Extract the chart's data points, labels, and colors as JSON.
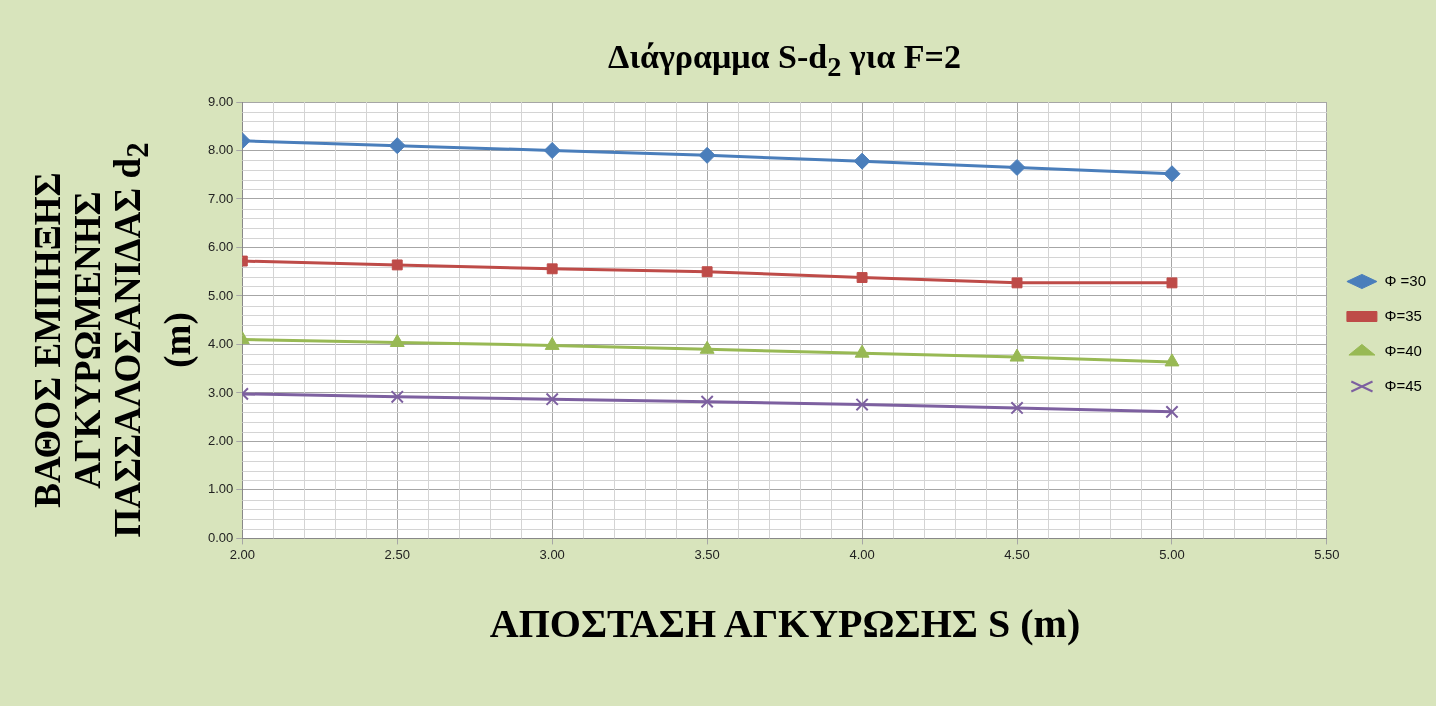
{
  "chart_data": {
    "type": "line",
    "title": "Διάγραμμα S-d$_{2}$ για F=2",
    "xlabel": "ΑΠΟΣΤΑΣΗ ΑΓΚΥΡΩΣΗΣ S (m)",
    "ylabel": "ΒΑΘΟΣ ΕΜΠΗΞΗΣ ΑΓΚΥΡΩΜΕΝΗΣ ΠΑΣΣΑΛΟΣΑΝΙΔΑΣ d$_{2}$ (m)",
    "x": [
      2.0,
      2.5,
      3.0,
      3.5,
      4.0,
      4.5,
      5.0
    ],
    "series": [
      {
        "name": "Φ =30",
        "color": "#4a7ebb",
        "marker": "diamond",
        "values": [
          8.2,
          8.1,
          8.0,
          7.9,
          7.78,
          7.65,
          7.52
        ]
      },
      {
        "name": "Φ=35",
        "color": "#be4b48",
        "marker": "square",
        "values": [
          5.72,
          5.64,
          5.56,
          5.5,
          5.38,
          5.27,
          5.27
        ]
      },
      {
        "name": "Φ=40",
        "color": "#98b954",
        "marker": "triangle",
        "values": [
          4.1,
          4.04,
          3.98,
          3.9,
          3.82,
          3.74,
          3.64
        ]
      },
      {
        "name": "Φ=45",
        "color": "#7d60a0",
        "marker": "cross",
        "values": [
          2.98,
          2.92,
          2.87,
          2.82,
          2.76,
          2.69,
          2.61
        ]
      }
    ],
    "xlim": [
      2.0,
      5.5
    ],
    "xticks": [
      {
        "value": 2.0,
        "label": "2.00"
      },
      {
        "value": 2.5,
        "label": "2.50"
      },
      {
        "value": 3.0,
        "label": "3.00"
      },
      {
        "value": 3.5,
        "label": "3.50"
      },
      {
        "value": 4.0,
        "label": "4.00"
      },
      {
        "value": 4.5,
        "label": "4.50"
      },
      {
        "value": 5.0,
        "label": "5.00"
      },
      {
        "value": 5.5,
        "label": "5.50"
      }
    ],
    "ylim": [
      0,
      9
    ],
    "yticks": [
      {
        "value": 0,
        "label": "0.00"
      },
      {
        "value": 1,
        "label": "1.00"
      },
      {
        "value": 2,
        "label": "2.00"
      },
      {
        "value": 3,
        "label": "3.00"
      },
      {
        "value": 4,
        "label": "4.00"
      },
      {
        "value": 5,
        "label": "5.00"
      },
      {
        "value": 6,
        "label": "6.00"
      },
      {
        "value": 7,
        "label": "7.00"
      },
      {
        "value": 8,
        "label": "8.00"
      },
      {
        "value": 9,
        "label": "9.00"
      }
    ],
    "grid": true,
    "legend": "right",
    "line_style": "solid"
  }
}
